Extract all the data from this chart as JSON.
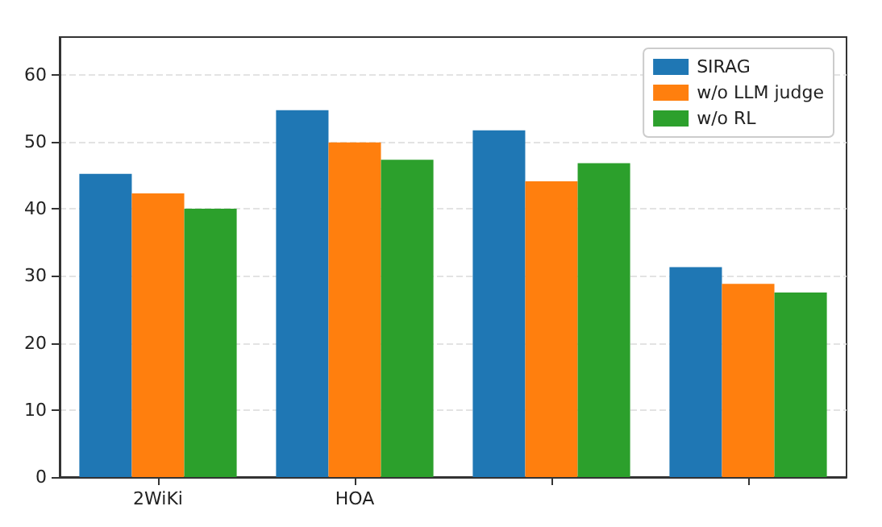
{
  "chart_data": {
    "type": "bar",
    "categories": [
      "2WiKi",
      "HOA",
      null,
      null
    ],
    "series": [
      {
        "name": "SIRAG",
        "color": "#1f77b4",
        "values": [
          45.2,
          54.7,
          51.7,
          31.3
        ]
      },
      {
        "name": "w/o LLM judge",
        "color": "#ff7f0e",
        "values": [
          42.3,
          49.9,
          44.1,
          28.8
        ]
      },
      {
        "name": "w/o RL",
        "color": "#2ca02c",
        "values": [
          40.0,
          47.3,
          46.8,
          27.5
        ]
      }
    ],
    "ylim": [
      0,
      65.6
    ],
    "yticks": [
      0,
      10,
      20,
      30,
      40,
      50,
      60
    ],
    "grid": "y",
    "legend": "top right"
  }
}
